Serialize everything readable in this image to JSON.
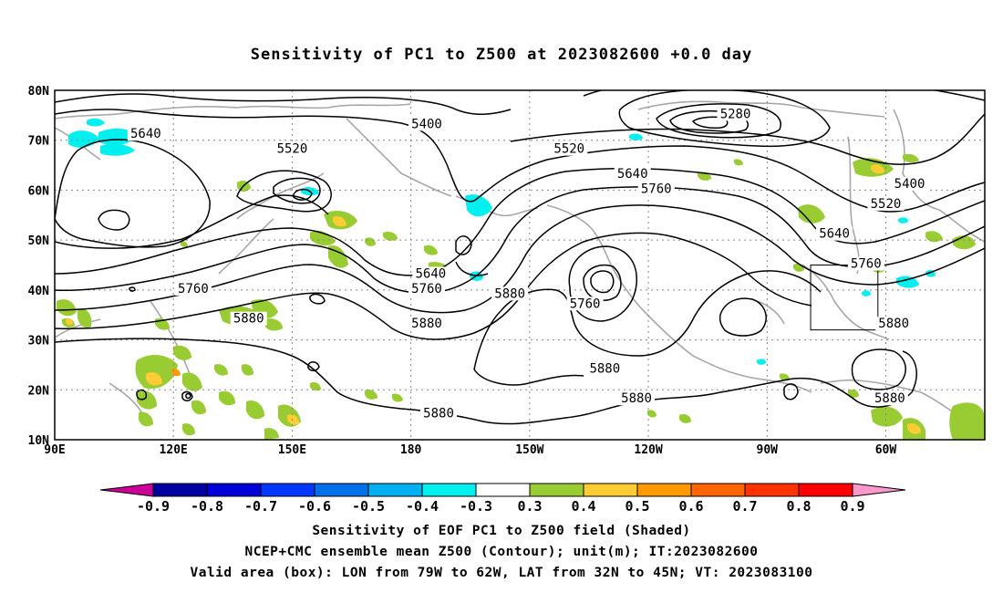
{
  "title": "Sensitivity of PC1 to Z500 at 2023082600 +0.0 day",
  "map": {
    "lat_labels": [
      "80N",
      "70N",
      "60N",
      "50N",
      "40N",
      "30N",
      "20N",
      "10N"
    ],
    "lon_labels": [
      "90E",
      "120E",
      "150E",
      "180",
      "150W",
      "120W",
      "90W",
      "60W"
    ],
    "lat_range": [
      10,
      80
    ],
    "lon_range_east_deg": [
      90,
      325
    ],
    "contour_labels": [
      {
        "text": "5280",
        "lon": 262,
        "lat": 75
      },
      {
        "text": "5400",
        "lon": 184,
        "lat": 73
      },
      {
        "text": "5400",
        "lon": 306,
        "lat": 61
      },
      {
        "text": "5520",
        "lon": 150,
        "lat": 68
      },
      {
        "text": "5520",
        "lon": 220,
        "lat": 68
      },
      {
        "text": "5520",
        "lon": 300,
        "lat": 57
      },
      {
        "text": "5640",
        "lon": 113,
        "lat": 71
      },
      {
        "text": "5640",
        "lon": 236,
        "lat": 63
      },
      {
        "text": "5640",
        "lon": 185,
        "lat": 43
      },
      {
        "text": "5640",
        "lon": 287,
        "lat": 51
      },
      {
        "text": "5760",
        "lon": 242,
        "lat": 60
      },
      {
        "text": "5760",
        "lon": 125,
        "lat": 40
      },
      {
        "text": "5760",
        "lon": 184,
        "lat": 40
      },
      {
        "text": "5760",
        "lon": 295,
        "lat": 45
      },
      {
        "text": "5760",
        "lon": 224,
        "lat": 37
      },
      {
        "text": "5880",
        "lon": 139,
        "lat": 34
      },
      {
        "text": "5880",
        "lon": 205,
        "lat": 39
      },
      {
        "text": "5880",
        "lon": 184,
        "lat": 33
      },
      {
        "text": "5880",
        "lon": 229,
        "lat": 24
      },
      {
        "text": "5880",
        "lon": 237,
        "lat": 18
      },
      {
        "text": "5880",
        "lon": 187,
        "lat": 15
      },
      {
        "text": "5880",
        "lon": 302,
        "lat": 33
      },
      {
        "text": "5880",
        "lon": 301,
        "lat": 18
      }
    ],
    "valid_box": {
      "lon_west": 79,
      "lon_east": 62,
      "lat_south": 32,
      "lat_north": 45
    }
  },
  "colorbar": {
    "labels": [
      "-0.9",
      "-0.8",
      "-0.7",
      "-0.6",
      "-0.5",
      "-0.4",
      "-0.3",
      "0.3",
      "0.4",
      "0.5",
      "0.6",
      "0.7",
      "0.8",
      "0.9"
    ],
    "colors": [
      "#0000a0",
      "#0000d8",
      "#0038ff",
      "#0070e8",
      "#00b0f0",
      "#00f0f0",
      "#ffffff",
      "#99cc33",
      "#ffcc33",
      "#ff9900",
      "#ff6600",
      "#ff3300",
      "#ff0000"
    ],
    "low_end_color": "#cc0099",
    "high_end_color": "#ff99cc"
  },
  "footer": {
    "line1": "Sensitivity of EOF PC1 to Z500 field (Shaded)",
    "line2": "NCEP+CMC ensemble mean Z500 (Contour); unit(m); IT:2023082600",
    "line3": "Valid area (box): LON from 79W to 62W, LAT from 32N to 45N; VT: 2023083100"
  }
}
